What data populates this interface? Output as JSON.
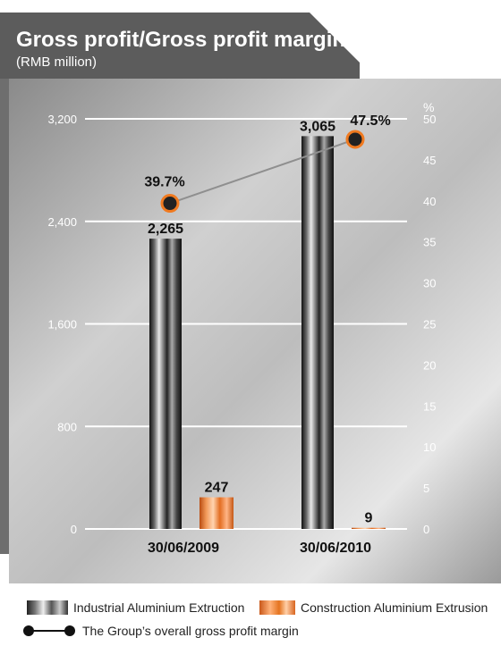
{
  "chart_data": {
    "type": "bar",
    "title": "Gross profit/Gross profit margin",
    "subtitle": "(RMB million)",
    "categories": [
      "30/06/2009",
      "30/06/2010"
    ],
    "series": [
      {
        "name": "Industrial Aluminium Extruction",
        "values": [
          2265,
          3065
        ],
        "labels": [
          "2,265",
          "3,065"
        ],
        "color": "#444444"
      },
      {
        "name": "Construction Aluminium Extrusion",
        "values": [
          247,
          9
        ],
        "labels": [
          "247",
          "9"
        ],
        "color": "#e8742a"
      }
    ],
    "line_series": {
      "name": "The Group’s overall gross profit margin",
      "values": [
        39.7,
        47.5
      ],
      "labels": [
        "39.7%",
        "47.5%"
      ],
      "color": "#f07a20",
      "axis": "right"
    },
    "y_left": {
      "ylim": [
        0,
        3200
      ],
      "ticks": [
        0,
        800,
        1600,
        2400,
        3200
      ],
      "tick_labels": [
        "0",
        "800",
        "1,600",
        "2,400",
        "3,200"
      ]
    },
    "y_right": {
      "label": "%",
      "ylim": [
        0,
        50
      ],
      "ticks": [
        0,
        5,
        10,
        15,
        20,
        25,
        30,
        35,
        40,
        45,
        50
      ],
      "tick_labels": [
        "0",
        "5",
        "10",
        "15",
        "20",
        "25",
        "30",
        "35",
        "40",
        "45",
        "50"
      ]
    },
    "grid": true,
    "legend": "bottom"
  }
}
